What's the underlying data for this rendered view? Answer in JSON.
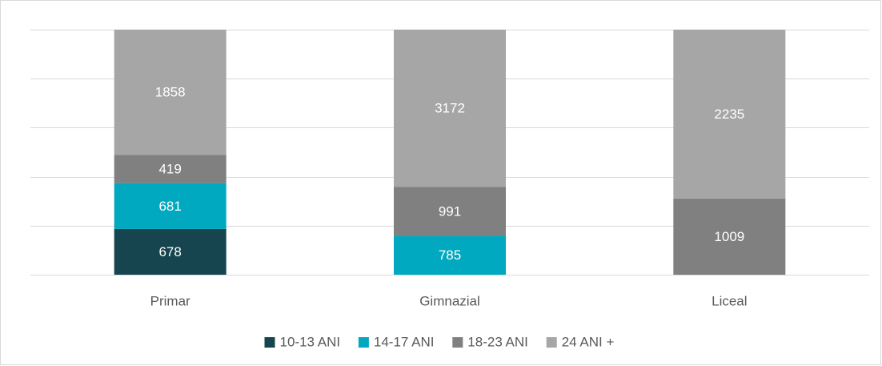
{
  "chart_data": {
    "type": "bar",
    "stacking": "percent",
    "categories": [
      "Primar",
      "Gimnazial",
      "Liceal"
    ],
    "series": [
      {
        "name": "10-13 ANI",
        "color": "#16444f",
        "values": [
          678,
          null,
          null
        ]
      },
      {
        "name": "14-17 ANI",
        "color": "#00a9bf",
        "values": [
          681,
          785,
          null
        ]
      },
      {
        "name": "18-23 ANI",
        "color": "#808080",
        "values": [
          419,
          991,
          1009
        ]
      },
      {
        "name": "24 ANI +",
        "color": "#a6a6a6",
        "values": [
          1858,
          3172,
          2235
        ]
      }
    ],
    "ylim": [
      0,
      100
    ],
    "yticks": [
      0,
      20,
      40,
      60,
      80,
      100
    ],
    "grid": true,
    "legend": "bottom"
  }
}
